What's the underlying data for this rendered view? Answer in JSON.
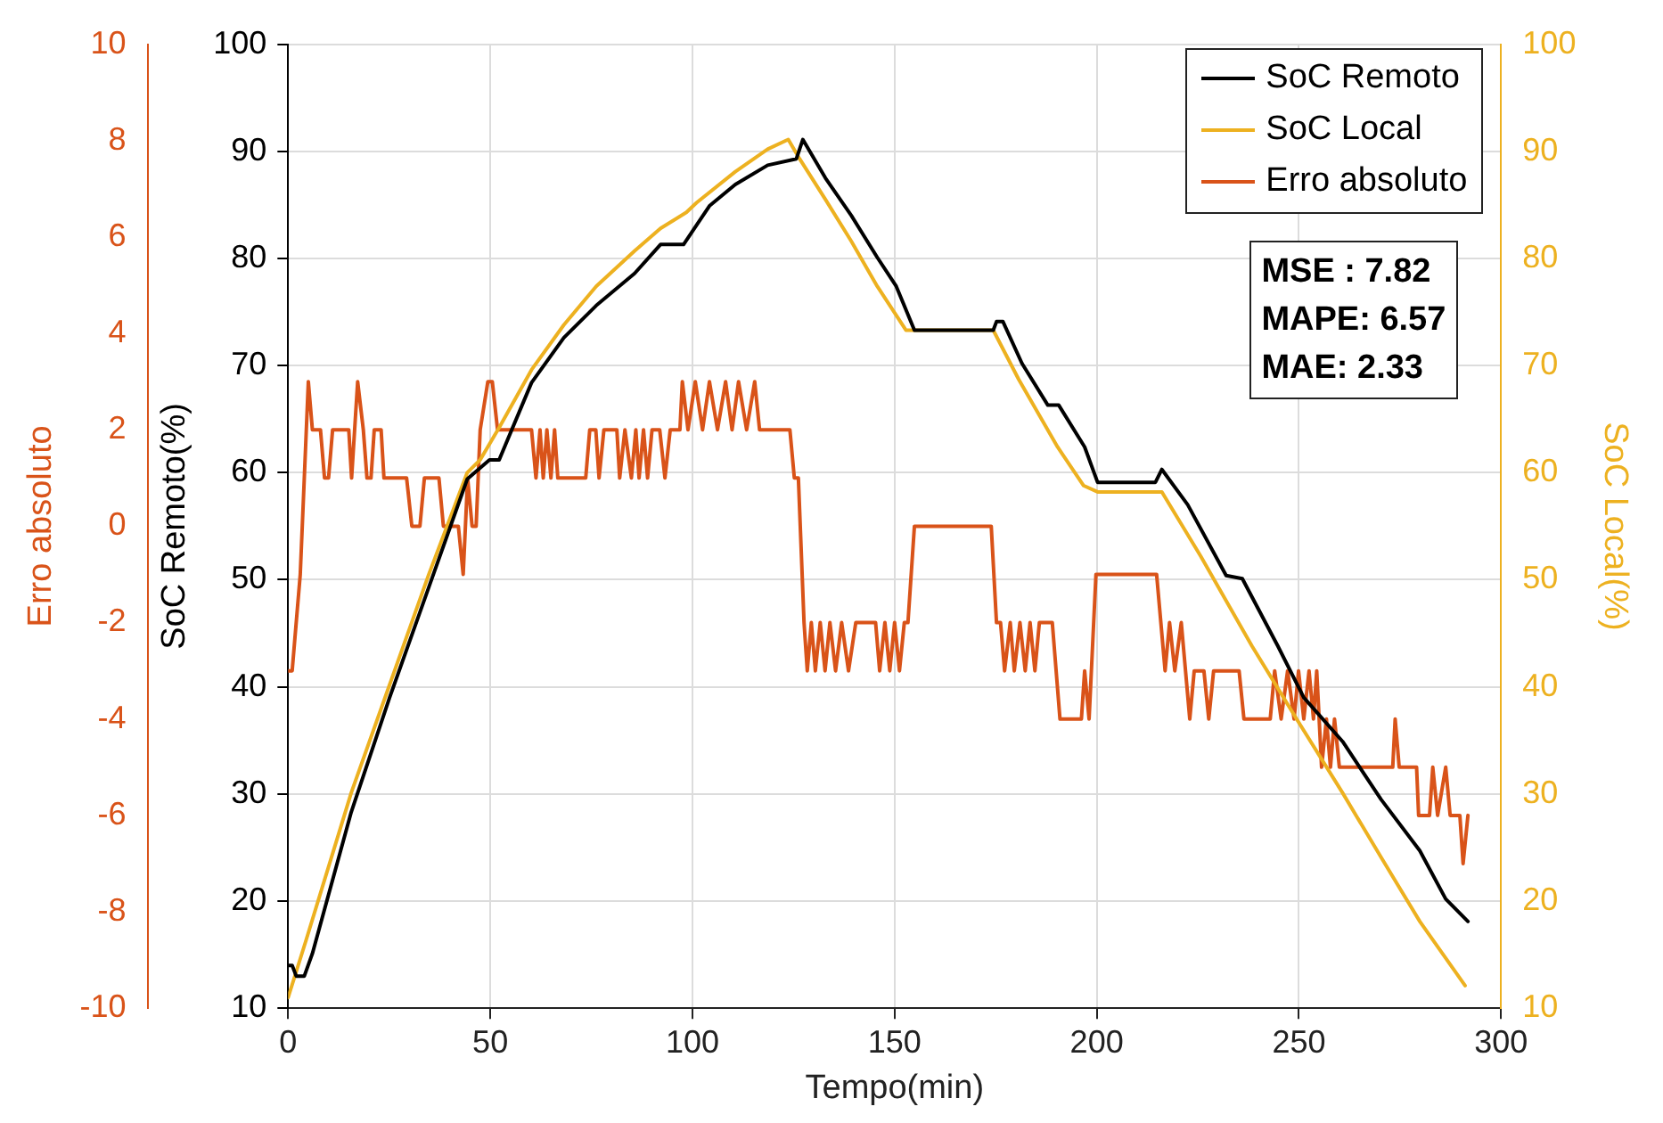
{
  "chart_data": {
    "type": "line",
    "xlabel": "Tempo(min)",
    "ylabel": "SoC Remoto(%)",
    "y2label": "SoC Local(%)",
    "y3label": "Erro absoluto",
    "xlim": [
      0,
      300
    ],
    "xticks": [
      0,
      50,
      100,
      150,
      200,
      250,
      300
    ],
    "ylim": [
      10,
      100
    ],
    "yticks": [
      10,
      20,
      30,
      40,
      50,
      60,
      70,
      80,
      90,
      100
    ],
    "y2lim": [
      10,
      100
    ],
    "y2ticks": [
      10,
      20,
      30,
      40,
      50,
      60,
      70,
      80,
      90,
      100
    ],
    "y3lim": [
      -10,
      10
    ],
    "y3ticks": [
      -10,
      -8,
      -6,
      -4,
      -2,
      0,
      2,
      4,
      6,
      8,
      10
    ],
    "grid": true,
    "legend": "top right",
    "marker": "none",
    "line_style": "solid",
    "annotations": [
      "MSE : 7.82",
      "MAPE: 6.57",
      "MAE: 2.33"
    ],
    "series": [
      {
        "name": "SoC Remoto",
        "color": "#000000",
        "x": [
          0,
          1,
          2,
          4,
          6,
          15.6,
          25.1,
          34.7,
          44.3,
          49.8,
          52.2,
          60.2,
          68.2,
          76.2,
          85.7,
          92.1,
          97.8,
          104.2,
          110.6,
          118.6,
          125.7,
          127.3,
          132.9,
          139.3,
          145.7,
          150.4,
          154.9,
          174.4,
          175.2,
          176.8,
          181.5,
          187.9,
          190.6,
          197,
          200.2,
          214.5,
          216.1,
          222.5,
          232,
          236,
          244.8,
          251.2,
          260.8,
          270.3,
          279.9,
          286.3,
          291.8
        ],
        "values": [
          14,
          14,
          13,
          13,
          15.1,
          28.3,
          39,
          49.2,
          59.4,
          61.2,
          61.2,
          68.4,
          72.6,
          75.6,
          78.6,
          81.3,
          81.3,
          84.9,
          86.9,
          88.7,
          89.3,
          91.1,
          87.5,
          84,
          80.1,
          77.4,
          73.3,
          73.3,
          74.1,
          74.1,
          70.2,
          66.3,
          66.3,
          62.4,
          59.1,
          59.1,
          60.3,
          57,
          50.4,
          50.1,
          43.8,
          39,
          34.9,
          29.5,
          24.7,
          20.2,
          18.1
        ]
      },
      {
        "name": "SoC Local",
        "color": "#edb120",
        "axis": "y2",
        "x": [
          0,
          4.4,
          15.6,
          25.1,
          34.7,
          44.3,
          47.5,
          52.2,
          60.2,
          68.2,
          76.2,
          85.7,
          92.1,
          98.5,
          101,
          110.6,
          118.6,
          123.7,
          126.5,
          132.9,
          139.3,
          145.7,
          152.8,
          174.4,
          180.7,
          190.3,
          196.7,
          200.2,
          216.1,
          225.7,
          238.4,
          249.6,
          260.8,
          270.3,
          279.9,
          291.1
        ],
        "values": [
          11,
          16.3,
          30.1,
          40.2,
          50.4,
          60,
          61.2,
          64.2,
          69.6,
          73.8,
          77.4,
          80.7,
          82.8,
          84.3,
          85.2,
          88.1,
          90.2,
          91.1,
          89.3,
          85.5,
          81.6,
          77.4,
          73.3,
          73.3,
          68.7,
          62.4,
          58.8,
          58.2,
          58.2,
          52.2,
          43.8,
          36.9,
          30.1,
          24.1,
          18.1,
          12.1
        ]
      },
      {
        "name": "Erro absoluto",
        "color": "#d95319",
        "axis": "y3",
        "x": [
          0,
          1,
          3,
          4,
          5,
          6,
          8,
          9,
          10,
          11,
          15,
          15.7,
          17.2,
          18.6,
          19.5,
          20.5,
          21.3,
          23,
          23.7,
          29.3,
          30.6,
          32.6,
          33.7,
          37.3,
          38.4,
          42.1,
          43.3,
          44.4,
          45.5,
          46.5,
          47.5,
          49.4,
          50.5,
          51.8,
          60.2,
          61.3,
          62.3,
          63.1,
          64,
          65,
          65.9,
          66.7,
          73.6,
          74.6,
          76.1,
          76.9,
          78.1,
          81.3,
          82,
          83.3,
          84.9,
          86,
          86.8,
          87.9,
          88.9,
          90,
          91.9,
          93.2,
          94.5,
          96.9,
          97.5,
          98.9,
          100.7,
          102.5,
          104.2,
          106.2,
          108.2,
          109.8,
          111.4,
          113.4,
          115.4,
          116.6,
          124.1,
          125.2,
          126.2,
          127.6,
          128.4,
          129.4,
          130.4,
          131.6,
          132.8,
          134,
          135.4,
          136.9,
          138.6,
          140.4,
          145.3,
          146.3,
          147.6,
          148.8,
          150,
          151.2,
          152.4,
          153.3,
          154.9,
          173.9,
          175.2,
          176.2,
          177.2,
          178.6,
          179.6,
          181,
          182.3,
          183.5,
          184.7,
          185.8,
          189,
          190.9,
          196.2,
          197,
          198.1,
          199.8,
          214.8,
          216.9,
          218,
          219.3,
          220.9,
          223,
          224.1,
          226.5,
          227.7,
          228.9,
          235.2,
          236.4,
          242.9,
          244,
          245.6,
          247.2,
          248.8,
          249.9,
          251.2,
          252.5,
          253.6,
          254.4,
          255.6,
          256.8,
          257.8,
          258.8,
          260,
          273.2,
          273.8,
          274.8,
          279.1,
          279.6,
          282.3,
          283.1,
          284.3,
          286.3,
          287.4,
          289.8,
          290.6,
          291.8
        ],
        "values": [
          -3,
          -3,
          -1,
          1,
          3,
          2,
          2,
          1,
          1,
          2,
          2,
          1,
          3,
          2,
          1,
          1,
          2,
          2,
          1,
          1,
          0,
          0,
          1,
          1,
          0,
          0,
          -1,
          1,
          0,
          0,
          2,
          3,
          3,
          2,
          2,
          1,
          2,
          1,
          2,
          1,
          2,
          1,
          1,
          2,
          2,
          1,
          2,
          2,
          1,
          2,
          1,
          2,
          1,
          2,
          1,
          2,
          2,
          1,
          2,
          2,
          3,
          2,
          3,
          2,
          3,
          2,
          3,
          2,
          3,
          2,
          3,
          2,
          2,
          1,
          1,
          -2,
          -3,
          -2,
          -3,
          -2,
          -3,
          -2,
          -3,
          -2,
          -3,
          -2,
          -2,
          -3,
          -2,
          -3,
          -2,
          -3,
          -2,
          -2,
          0,
          0,
          -2,
          -2,
          -3,
          -2,
          -3,
          -2,
          -3,
          -2,
          -3,
          -2,
          -2,
          -4,
          -4,
          -3,
          -4,
          -1,
          -1,
          -3,
          -2,
          -3,
          -2,
          -4,
          -3,
          -3,
          -4,
          -3,
          -3,
          -4,
          -4,
          -3,
          -4,
          -3,
          -4,
          -3,
          -4,
          -3,
          -4,
          -3,
          -5,
          -4,
          -5,
          -4,
          -5,
          -5,
          -4,
          -5,
          -5,
          -6,
          -6,
          -5,
          -6,
          -5,
          -6,
          -6,
          -7,
          -6
        ]
      }
    ]
  }
}
